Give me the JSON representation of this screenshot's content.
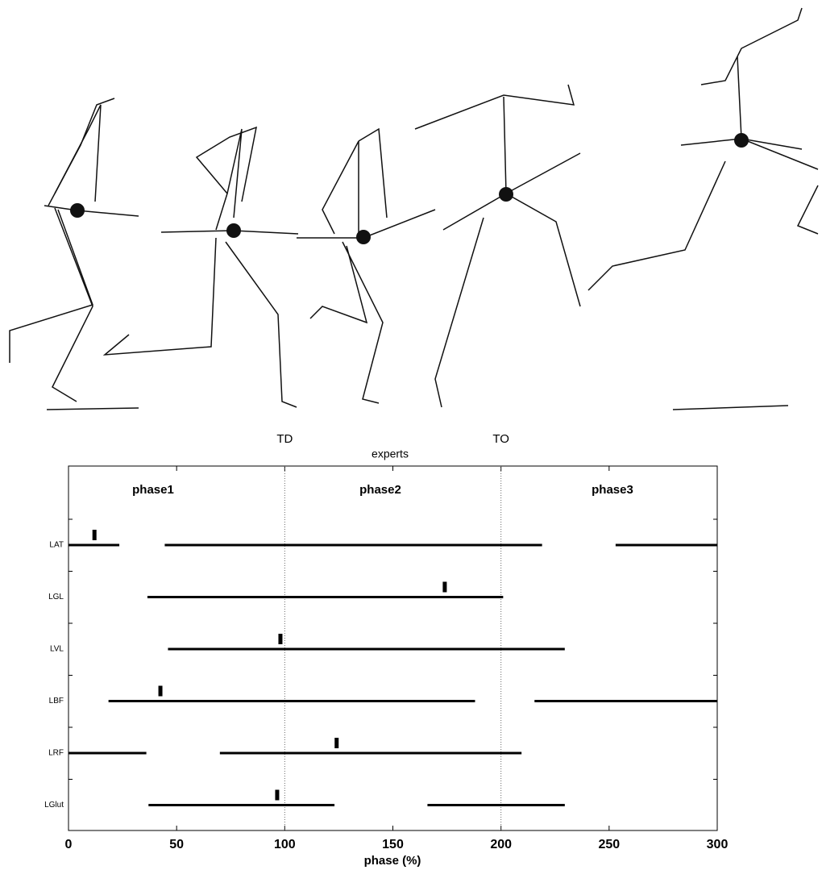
{
  "chart_data": {
    "type": "timeline",
    "title": "experts",
    "xlabel": "phase (%)",
    "xlim": [
      0,
      300
    ],
    "xticks": [
      0,
      50,
      100,
      150,
      200,
      250,
      300
    ],
    "events": [
      {
        "label": "TD",
        "x": 100
      },
      {
        "label": "TO",
        "x": 200
      }
    ],
    "phase_labels": [
      "phase1",
      "phase2",
      "phase3"
    ],
    "color": "#000000",
    "rows": [
      {
        "name": "LAT",
        "intervals": [
          [
            0,
            23.5
          ],
          [
            44.5,
            219
          ],
          [
            253,
            300
          ]
        ],
        "peak": 12
      },
      {
        "name": "LGL",
        "intervals": [
          [
            36.5,
            201
          ]
        ],
        "peak": 174
      },
      {
        "name": "LVL",
        "intervals": [
          [
            46,
            229.5
          ]
        ],
        "peak": 98
      },
      {
        "name": "LBF",
        "intervals": [
          [
            18.5,
            188
          ],
          [
            215.5,
            300
          ]
        ],
        "peak": 42.5
      },
      {
        "name": "LRF",
        "intervals": [
          [
            0,
            36
          ],
          [
            70,
            209.5
          ]
        ],
        "peak": 124
      },
      {
        "name": "LGlut",
        "intervals": [
          [
            37,
            123
          ],
          [
            166,
            229.5
          ]
        ],
        "peak": 96.5
      }
    ]
  }
}
